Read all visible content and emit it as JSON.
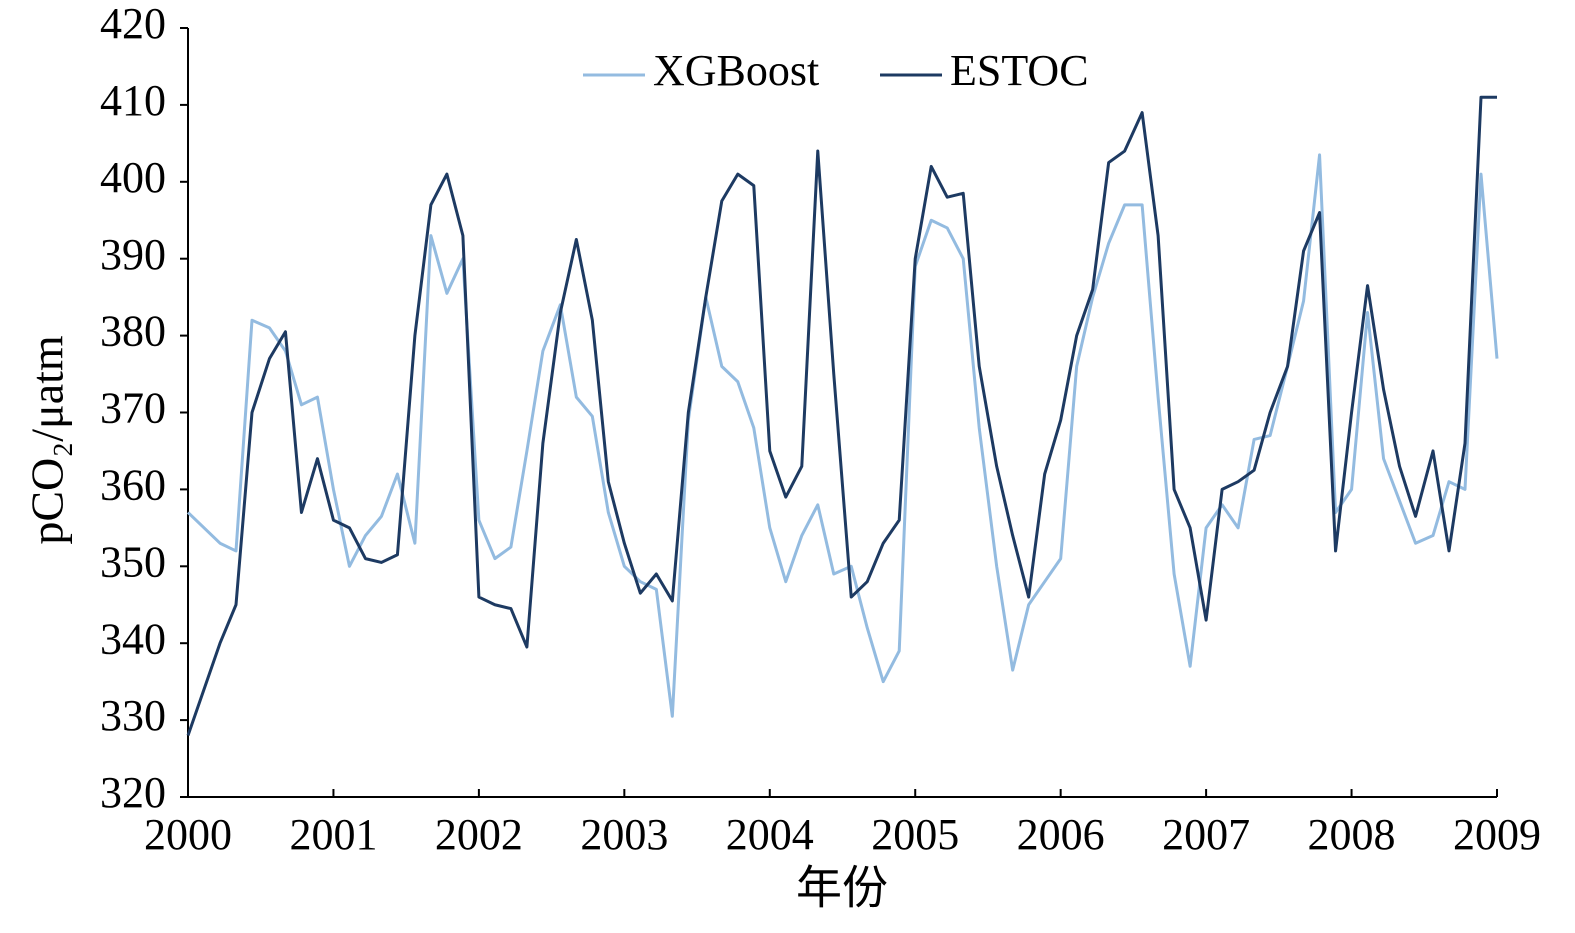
{
  "chart_data": {
    "type": "line",
    "x_label": "年份",
    "y_label": "pCO₂/μatm",
    "x": [
      2000.0,
      2000.11,
      2000.22,
      2000.33,
      2000.44,
      2000.56,
      2000.67,
      2000.78,
      2000.89,
      2001.0,
      2001.11,
      2001.22,
      2001.33,
      2001.44,
      2001.56,
      2001.67,
      2001.78,
      2001.89,
      2002.0,
      2002.11,
      2002.22,
      2002.33,
      2002.44,
      2002.56,
      2002.67,
      2002.78,
      2002.89,
      2003.0,
      2003.11,
      2003.22,
      2003.33,
      2003.44,
      2003.56,
      2003.67,
      2003.78,
      2003.89,
      2004.0,
      2004.11,
      2004.22,
      2004.33,
      2004.44,
      2004.56,
      2004.67,
      2004.78,
      2004.89,
      2005.0,
      2005.11,
      2005.22,
      2005.33,
      2005.44,
      2005.56,
      2005.67,
      2005.78,
      2005.89,
      2006.0,
      2006.11,
      2006.22,
      2006.33,
      2006.44,
      2006.56,
      2006.67,
      2006.78,
      2006.89,
      2007.0,
      2007.11,
      2007.22,
      2007.33,
      2007.44,
      2007.56,
      2007.67,
      2007.78,
      2007.89,
      2008.0,
      2008.11,
      2008.22,
      2008.33,
      2008.44,
      2008.56,
      2008.67,
      2008.78,
      2008.89,
      2009.0
    ],
    "series": [
      {
        "name": "XGBoost",
        "color": "#93bbe0",
        "values": [
          357,
          355,
          353,
          352,
          382,
          381,
          378,
          371,
          372,
          360,
          350,
          354,
          356.5,
          362,
          353,
          393,
          385.5,
          390,
          356,
          351,
          352.5,
          365,
          378,
          384,
          372,
          369.5,
          357,
          350,
          348,
          347,
          330.5,
          369,
          385,
          376,
          374,
          368,
          355,
          348,
          354,
          358,
          349,
          350,
          342,
          335,
          339,
          389,
          395,
          394,
          390,
          368,
          350,
          336.5,
          345,
          348,
          351,
          376,
          385,
          392,
          397,
          397,
          372,
          349,
          337,
          355,
          358,
          355,
          366.5,
          367,
          376,
          384.5,
          403.5,
          357,
          360,
          383,
          364,
          358.5,
          353,
          354,
          361,
          360,
          401,
          377
        ]
      },
      {
        "name": "ESTOC",
        "color": "#1d3a62",
        "values": [
          328,
          334,
          340,
          345,
          370,
          377,
          380.5,
          357,
          364,
          356,
          355,
          351,
          350.5,
          351.5,
          380,
          397,
          401,
          393,
          346,
          345,
          344.5,
          339.5,
          366,
          383,
          392.5,
          382,
          361,
          353,
          346.5,
          349,
          345.5,
          370,
          385,
          397.5,
          401,
          399.5,
          365,
          359,
          363,
          404,
          375,
          346,
          348,
          353,
          356,
          390,
          402,
          398,
          398.5,
          376,
          363,
          354,
          346,
          362,
          369,
          380,
          386,
          402.5,
          404,
          409,
          393,
          360,
          355,
          343,
          360,
          361,
          362.5,
          370,
          376,
          391,
          396,
          352,
          370,
          386.5,
          373,
          363,
          356.5,
          365,
          352,
          366,
          411,
          411
        ]
      }
    ],
    "xlim": [
      2000,
      2009
    ],
    "xticks": [
      2000,
      2001,
      2002,
      2003,
      2004,
      2005,
      2006,
      2007,
      2008,
      2009
    ],
    "ylim": [
      320,
      420
    ],
    "yticks": [
      320,
      330,
      340,
      350,
      360,
      370,
      380,
      390,
      400,
      410,
      420
    ],
    "grid": false,
    "legend": "top"
  }
}
